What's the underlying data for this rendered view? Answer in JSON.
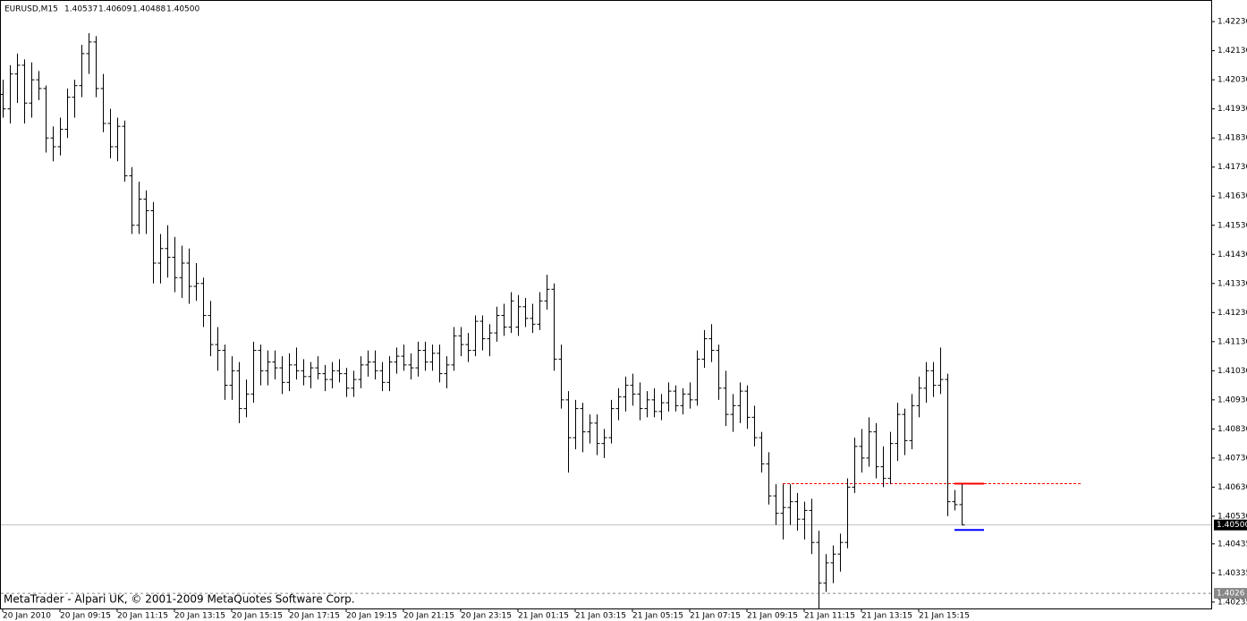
{
  "chart_data": {
    "type": "ohlc",
    "title": "EURUSD,M15",
    "title_values": [
      1.40537,
      1.40609,
      1.40488,
      {
        "value": 1.405,
        "label": "1.40500"
      }
    ],
    "watermark": "MetaTrader - Alpari UK, © 2001-2009 MetaQuotes Software Corp.",
    "color": "#000000",
    "x_labels": [
      "20 Jan 2010",
      "20 Jan 09:15",
      "20 Jan 11:15",
      "20 Jan 13:15",
      "20 Jan 15:15",
      "20 Jan 17:15",
      "20 Jan 19:15",
      "20 Jan 21:15",
      "20 Jan 23:15",
      "21 Jan 01:15",
      "21 Jan 03:15",
      "21 Jan 05:15",
      "21 Jan 07:15",
      "21 Jan 09:15",
      "21 Jan 11:15",
      "21 Jan 13:15",
      "21 Jan 15:15"
    ],
    "ylim": [
      1.40213,
      1.42295
    ],
    "yticks": [
      {
        "value": 1.4223,
        "label": "1.42230"
      },
      {
        "value": 1.4213,
        "label": "1.42130"
      },
      {
        "value": 1.4203,
        "label": "1.42030"
      },
      {
        "value": 1.4193,
        "label": "1.41930"
      },
      {
        "value": 1.4183,
        "label": "1.41830"
      },
      {
        "value": 1.4173,
        "label": "1.41730"
      },
      {
        "value": 1.4163,
        "label": "1.41630"
      },
      {
        "value": 1.4153,
        "label": "1.41530"
      },
      {
        "value": 1.4143,
        "label": "1.41430"
      },
      {
        "value": 1.4133,
        "label": "1.41330"
      },
      {
        "value": 1.4123,
        "label": "1.41230"
      },
      {
        "value": 1.4113,
        "label": "1.41130"
      },
      {
        "value": 1.4103,
        "label": "1.41030"
      },
      {
        "value": 1.4093,
        "label": "1.40930"
      },
      {
        "value": 1.4083,
        "label": "1.40830"
      },
      {
        "value": 1.4073,
        "label": "1.40730"
      },
      {
        "value": 1.4063,
        "label": "1.40630"
      },
      {
        "value": 1.4053,
        "label": "1.40530"
      },
      1.40435,
      1.40335,
      1.40235
    ],
    "current_price": {
      "value": 1.405,
      "label": "1.40500",
      "color": "#c0c0c0"
    },
    "bottom_level": {
      "value": 1.40265,
      "label": "1.4026"
    },
    "resistance": {
      "value": 1.40642,
      "color": "#ff0000"
    },
    "support": {
      "value": 1.40483,
      "color": "#0000ff"
    },
    "ohlc": [
      [
        1.4198,
        1.4203,
        1.419,
        1.4193
      ],
      [
        1.4193,
        1.4208,
        1.4188,
        1.4205
      ],
      [
        1.4205,
        1.4212,
        1.4195,
        1.4208
      ],
      [
        1.4208,
        1.421,
        1.4188,
        1.4195
      ],
      [
        1.4195,
        1.4209,
        1.419,
        1.4203
      ],
      [
        1.4203,
        1.4206,
        1.4196,
        1.42
      ],
      [
        1.42,
        1.4201,
        1.4178,
        1.4183
      ],
      [
        1.4183,
        1.4187,
        1.4175,
        1.418
      ],
      [
        1.418,
        1.419,
        1.4177,
        1.4186
      ],
      [
        1.4186,
        1.42,
        1.4183,
        1.4197
      ],
      [
        1.4197,
        1.4203,
        1.419,
        1.4201
      ],
      [
        1.4201,
        1.4215,
        1.4197,
        1.4212
      ],
      [
        1.4212,
        1.4219,
        1.4205,
        1.4216
      ],
      [
        1.4216,
        1.4218,
        1.4197,
        1.42
      ],
      [
        1.42,
        1.4205,
        1.4185,
        1.4188
      ],
      [
        1.4188,
        1.4193,
        1.4176,
        1.418
      ],
      [
        1.418,
        1.419,
        1.4175,
        1.4187
      ],
      [
        1.4187,
        1.4189,
        1.4168,
        1.417
      ],
      [
        1.417,
        1.4173,
        1.415,
        1.4153
      ],
      [
        1.4153,
        1.4168,
        1.415,
        1.4162
      ],
      [
        1.4162,
        1.4165,
        1.415,
        1.4158
      ],
      [
        1.4158,
        1.4161,
        1.4133,
        1.414
      ],
      [
        1.414,
        1.415,
        1.4133,
        1.4145
      ],
      [
        1.4145,
        1.4153,
        1.4135,
        1.4142
      ],
      [
        1.4142,
        1.4149,
        1.413,
        1.4135
      ],
      [
        1.4135,
        1.4146,
        1.4128,
        1.414
      ],
      [
        1.414,
        1.4145,
        1.4126,
        1.4132
      ],
      [
        1.4132,
        1.414,
        1.4127,
        1.4133
      ],
      [
        1.4133,
        1.4135,
        1.4118,
        1.4122
      ],
      [
        1.4122,
        1.4127,
        1.4108,
        1.4112
      ],
      [
        1.4112,
        1.4118,
        1.4103,
        1.411
      ],
      [
        1.411,
        1.4112,
        1.4093,
        1.4098
      ],
      [
        1.4098,
        1.4108,
        1.4093,
        1.4103
      ],
      [
        1.4103,
        1.4106,
        1.4085,
        1.409
      ],
      [
        1.409,
        1.41,
        1.4087,
        1.4095
      ],
      [
        1.4095,
        1.4113,
        1.4092,
        1.411
      ],
      [
        1.411,
        1.4112,
        1.4098,
        1.4103
      ],
      [
        1.4103,
        1.411,
        1.4098,
        1.4106
      ],
      [
        1.4106,
        1.411,
        1.41,
        1.4104
      ],
      [
        1.4104,
        1.4108,
        1.4095,
        1.4099
      ],
      [
        1.4099,
        1.4109,
        1.4096,
        1.4105
      ],
      [
        1.4105,
        1.4111,
        1.41,
        1.4103
      ],
      [
        1.4103,
        1.4107,
        1.4098,
        1.4101
      ],
      [
        1.4101,
        1.4106,
        1.4097,
        1.4104
      ],
      [
        1.4104,
        1.4108,
        1.41,
        1.4102
      ],
      [
        1.4102,
        1.4105,
        1.4096,
        1.41
      ],
      [
        1.41,
        1.4106,
        1.4097,
        1.4103
      ],
      [
        1.4103,
        1.4107,
        1.4099,
        1.4102
      ],
      [
        1.4102,
        1.4104,
        1.4094,
        1.4097
      ],
      [
        1.4097,
        1.4103,
        1.4094,
        1.41
      ],
      [
        1.41,
        1.4108,
        1.4097,
        1.4105
      ],
      [
        1.4105,
        1.411,
        1.4101,
        1.4106
      ],
      [
        1.4106,
        1.411,
        1.41,
        1.4103
      ],
      [
        1.4103,
        1.4106,
        1.4096,
        1.4099
      ],
      [
        1.4099,
        1.4108,
        1.4096,
        1.4106
      ],
      [
        1.4106,
        1.4111,
        1.4102,
        1.4108
      ],
      [
        1.4108,
        1.4112,
        1.4103,
        1.4105
      ],
      [
        1.4105,
        1.4109,
        1.41,
        1.4104
      ],
      [
        1.4104,
        1.4113,
        1.4101,
        1.411
      ],
      [
        1.411,
        1.4113,
        1.4103,
        1.4106
      ],
      [
        1.4106,
        1.4112,
        1.4103,
        1.4109
      ],
      [
        1.4109,
        1.4112,
        1.4099,
        1.4102
      ],
      [
        1.4102,
        1.4108,
        1.4097,
        1.4105
      ],
      [
        1.4105,
        1.4118,
        1.4103,
        1.4115
      ],
      [
        1.4115,
        1.4118,
        1.4108,
        1.4112
      ],
      [
        1.4112,
        1.4116,
        1.4106,
        1.411
      ],
      [
        1.411,
        1.4122,
        1.4108,
        1.412
      ],
      [
        1.412,
        1.4122,
        1.411,
        1.4114
      ],
      [
        1.4114,
        1.4119,
        1.4108,
        1.4116
      ],
      [
        1.4116,
        1.4125,
        1.4113,
        1.4122
      ],
      [
        1.4122,
        1.4126,
        1.4115,
        1.4118
      ],
      [
        1.4118,
        1.413,
        1.4116,
        1.4127
      ],
      [
        1.4118,
        1.4129,
        1.4115,
        1.4125
      ],
      [
        1.4125,
        1.4128,
        1.4118,
        1.4121
      ],
      [
        1.4121,
        1.4126,
        1.4116,
        1.4119
      ],
      [
        1.4119,
        1.413,
        1.4117,
        1.4127
      ],
      [
        1.4127,
        1.4136,
        1.4124,
        1.4131
      ],
      [
        1.4131,
        1.4133,
        1.4103,
        1.4107
      ],
      [
        1.4107,
        1.4112,
        1.409,
        1.4093
      ],
      [
        1.4093,
        1.4096,
        1.4068,
        1.408
      ],
      [
        1.408,
        1.4093,
        1.4076,
        1.409
      ],
      [
        1.409,
        1.4092,
        1.4075,
        1.4082
      ],
      [
        1.4082,
        1.4088,
        1.4078,
        1.4085
      ],
      [
        1.4085,
        1.4088,
        1.4074,
        1.4078
      ],
      [
        1.4078,
        1.4083,
        1.4073,
        1.408
      ],
      [
        1.408,
        1.4093,
        1.4078,
        1.409
      ],
      [
        1.409,
        1.4097,
        1.4086,
        1.4094
      ],
      [
        1.4094,
        1.4101,
        1.4089,
        1.4098
      ],
      [
        1.4098,
        1.4102,
        1.4091,
        1.4095
      ],
      [
        1.4095,
        1.4099,
        1.4086,
        1.409
      ],
      [
        1.409,
        1.4096,
        1.4087,
        1.4093
      ],
      [
        1.4093,
        1.4097,
        1.4087,
        1.4089
      ],
      [
        1.4089,
        1.4095,
        1.4086,
        1.4092
      ],
      [
        1.4092,
        1.4099,
        1.4089,
        1.4096
      ],
      [
        1.4096,
        1.4098,
        1.4089,
        1.4091
      ],
      [
        1.4091,
        1.4097,
        1.4088,
        1.4095
      ],
      [
        1.4095,
        1.4099,
        1.409,
        1.4093
      ],
      [
        1.4093,
        1.411,
        1.4091,
        1.4107
      ],
      [
        1.4107,
        1.4117,
        1.4104,
        1.4114
      ],
      [
        1.4114,
        1.4119,
        1.4106,
        1.411
      ],
      [
        1.411,
        1.4112,
        1.4093,
        1.4097
      ],
      [
        1.4097,
        1.4103,
        1.4084,
        1.4088
      ],
      [
        1.4088,
        1.4095,
        1.4082,
        1.4091
      ],
      [
        1.4091,
        1.4099,
        1.4085,
        1.4096
      ],
      [
        1.4096,
        1.4098,
        1.4083,
        1.4087
      ],
      [
        1.4087,
        1.4091,
        1.4077,
        1.408
      ],
      [
        1.408,
        1.4082,
        1.4068,
        1.4071
      ],
      [
        1.4071,
        1.4075,
        1.4057,
        1.406
      ],
      [
        1.406,
        1.4064,
        1.405,
        1.4054
      ],
      [
        1.4054,
        1.4064,
        1.4045,
        1.4056
      ],
      [
        1.4056,
        1.4064,
        1.405,
        1.4058
      ],
      [
        1.4058,
        1.4061,
        1.4048,
        1.4052
      ],
      [
        1.4052,
        1.4058,
        1.4045,
        1.4055
      ],
      [
        1.4055,
        1.4059,
        1.404,
        1.4044
      ],
      [
        1.4044,
        1.4048,
        1.4021,
        1.403
      ],
      [
        1.403,
        1.404,
        1.4027,
        1.4037
      ],
      [
        1.4037,
        1.4043,
        1.403,
        1.404
      ],
      [
        1.404,
        1.4047,
        1.4034,
        1.4044
      ],
      [
        1.4044,
        1.4066,
        1.4042,
        1.4063
      ],
      [
        1.4063,
        1.408,
        1.4061,
        1.4077
      ],
      [
        1.4077,
        1.4083,
        1.4068,
        1.4073
      ],
      [
        1.4073,
        1.4087,
        1.407,
        1.4082
      ],
      [
        1.4082,
        1.4085,
        1.4066,
        1.407
      ],
      [
        1.407,
        1.4077,
        1.4063,
        1.4066
      ],
      [
        1.4066,
        1.4082,
        1.4064,
        1.4078
      ],
      [
        1.4078,
        1.4092,
        1.4072,
        1.4088
      ],
      [
        1.4088,
        1.409,
        1.4074,
        1.4079
      ],
      [
        1.4079,
        1.4095,
        1.4076,
        1.4091
      ],
      [
        1.4091,
        1.4101,
        1.4087,
        1.4097
      ],
      [
        1.4097,
        1.4106,
        1.4092,
        1.4103
      ],
      [
        1.4103,
        1.4106,
        1.4094,
        1.4098
      ],
      [
        1.4098,
        1.4111,
        1.4095,
        1.41
      ],
      [
        1.41,
        1.4102,
        1.4053,
        1.4058
      ],
      [
        1.4058,
        1.4062,
        1.4055,
        1.4057
      ],
      [
        1.4057,
        1.4064,
        1.405,
        1.405
      ]
    ]
  }
}
